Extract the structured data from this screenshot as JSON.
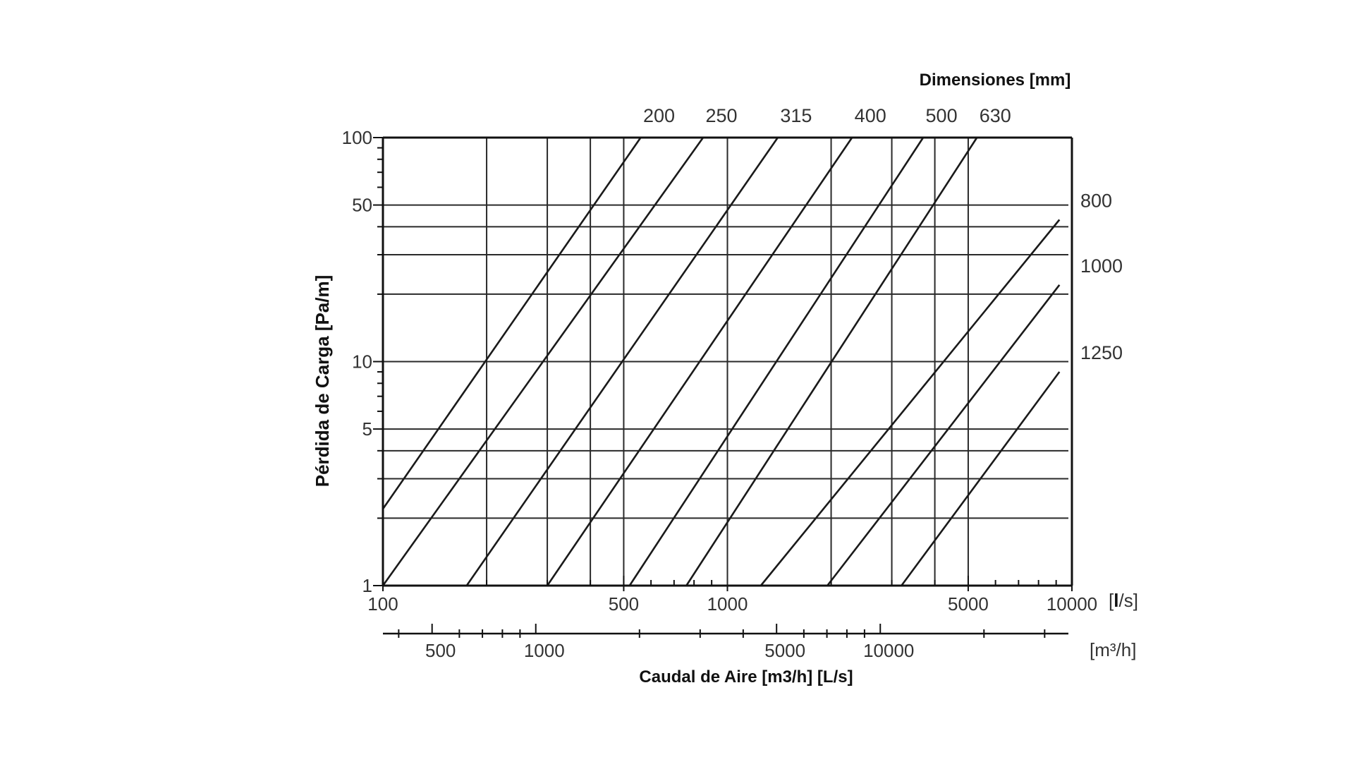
{
  "chart_data": {
    "type": "line",
    "title": "Dimensiones [mm]",
    "xlabel": "Caudal de Aire [m3/h] [L/s]",
    "ylabel": "Pérdida de Carga [Pa/m]",
    "x_scale": "log",
    "y_scale": "log",
    "xlim": [
      100,
      10000
    ],
    "ylim": [
      1,
      100
    ],
    "x_ticks": [
      {
        "value": 100,
        "label": "100"
      },
      {
        "value": 500,
        "label": "500"
      },
      {
        "value": 1000,
        "label": "1000"
      },
      {
        "value": 5000,
        "label": "5000"
      },
      {
        "value": 10000,
        "label": "10000"
      }
    ],
    "x_unit": {
      "pre": "[",
      "bold": "l",
      "post": "/s]"
    },
    "x2_ticks": [
      {
        "value": 500,
        "label": "500"
      },
      {
        "value": 1000,
        "label": "1000"
      },
      {
        "value": 5000,
        "label": "5000"
      },
      {
        "value": 10000,
        "label": "10000"
      }
    ],
    "x2_unit": "[m³/h]",
    "y_ticks": [
      {
        "value": 1,
        "label": "1"
      },
      {
        "value": 5,
        "label": "5"
      },
      {
        "value": 10,
        "label": "10"
      },
      {
        "value": 50,
        "label": "50"
      },
      {
        "value": 100,
        "label": "100"
      }
    ],
    "grid": {
      "vertical": [
        200,
        300,
        400,
        500,
        1000,
        2000,
        3000,
        4000,
        5000
      ],
      "horizontal": [
        2,
        3,
        4,
        5,
        10,
        20,
        30,
        40,
        50
      ]
    },
    "series": [
      {
        "name": "200",
        "points": [
          [
            100,
            2.2
          ],
          [
            560,
            100
          ]
        ]
      },
      {
        "name": "250",
        "points": [
          [
            100,
            1.0
          ],
          [
            850,
            100
          ]
        ]
      },
      {
        "name": "315",
        "points": [
          [
            175,
            1.0
          ],
          [
            1400,
            100
          ]
        ]
      },
      {
        "name": "400",
        "points": [
          [
            300,
            1.0
          ],
          [
            2300,
            100
          ]
        ]
      },
      {
        "name": "500",
        "points": [
          [
            520,
            1.0
          ],
          [
            3700,
            100
          ]
        ]
      },
      {
        "name": "630",
        "points": [
          [
            760,
            1.0
          ],
          [
            5300,
            100
          ]
        ]
      },
      {
        "name": "800",
        "points": [
          [
            1250,
            1.0
          ],
          [
            9200,
            43
          ]
        ]
      },
      {
        "name": "1000",
        "points": [
          [
            1950,
            1.0
          ],
          [
            9200,
            22
          ]
        ]
      },
      {
        "name": "1250",
        "points": [
          [
            3200,
            1.0
          ],
          [
            9200,
            9.0
          ]
        ]
      }
    ]
  }
}
